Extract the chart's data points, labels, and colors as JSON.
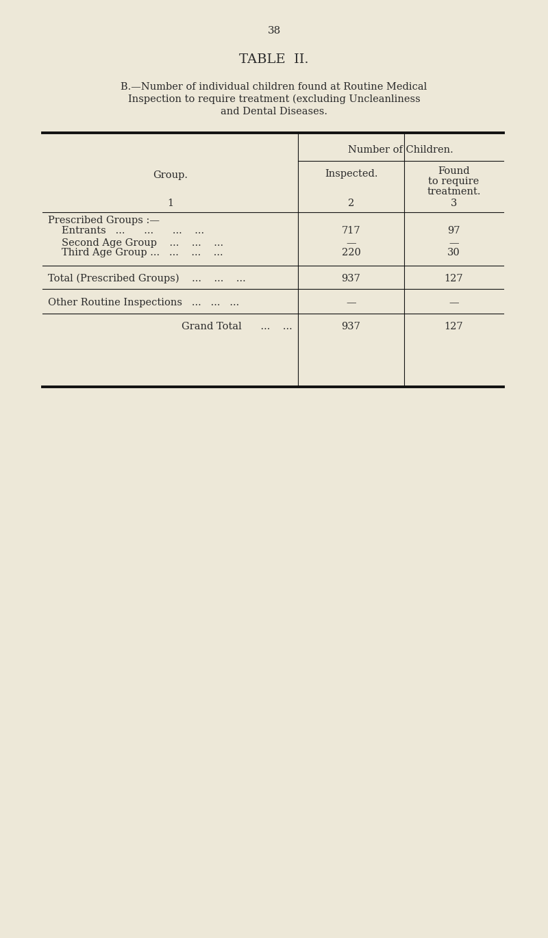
{
  "page_number": "38",
  "title": "TABLE  II.",
  "subtitle_line1": "B.—Number of individual children found at Routine Medical",
  "subtitle_line2": "Inspection to require treatment (excluding Uncleanliness",
  "subtitle_line3": "and Dental Diseases.",
  "col_header_main": "Number of Children.",
  "col_header_1": "Group.",
  "col_header_1_num": "1",
  "col_header_2": "Inspected.",
  "col_header_2_num": "2",
  "col_header_3_line1": "Found",
  "col_header_3_line2": "to require",
  "col_header_3_line3": "treatment.",
  "col_header_3_num": "3",
  "rows": [
    {
      "label": "Prescribed Groups :—",
      "inspected": "",
      "found": "",
      "type": "section_header",
      "indent": 0
    },
    {
      "label": "Entrants   ...      ...      ...    ...",
      "inspected": "717",
      "found": "97",
      "type": "data",
      "indent": 1
    },
    {
      "label": "Second Age Group    ...    ...    ...",
      "inspected": "—",
      "found": "—",
      "type": "data",
      "indent": 1
    },
    {
      "label": "Third Age Group ...   ...    ...    ...",
      "inspected": "220",
      "found": "30",
      "type": "data",
      "indent": 1
    },
    {
      "label": "Total (Prescribed Groups)    ...    ...    ...",
      "inspected": "937",
      "found": "127",
      "type": "total",
      "indent": 0
    },
    {
      "label": "Other Routine Inspections   ...   ...   ...",
      "inspected": "—",
      "found": "—",
      "type": "data",
      "indent": 0
    },
    {
      "label": "Grand Total      ...    ...",
      "inspected": "937",
      "found": "127",
      "type": "grand_total",
      "indent": 0
    }
  ],
  "bg_color": "#ede8d8",
  "text_color": "#2a2a2a",
  "line_color": "#111111",
  "body_font_size": 10.5,
  "header_font_size": 10.5,
  "title_font_size": 14,
  "page_num_font_size": 11
}
